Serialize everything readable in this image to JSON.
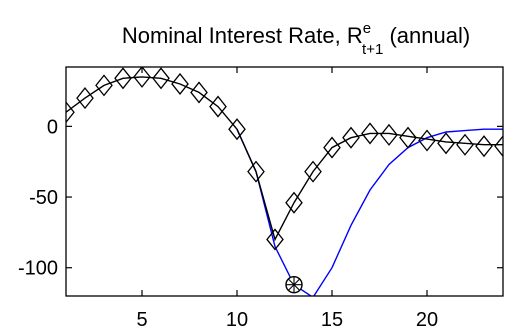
{
  "chart_data": {
    "type": "line",
    "title": {
      "prefix": "Nominal Interest Rate,  R",
      "superscript": "e",
      "subscript": "t+1",
      "suffix": " (annual)"
    },
    "xlim": [
      1,
      24
    ],
    "ylim": [
      -120,
      42
    ],
    "xticks": [
      5,
      10,
      15,
      20
    ],
    "xtick_labels": [
      "5",
      "10",
      "15",
      "20"
    ],
    "yticks": [
      0,
      -50,
      -100
    ],
    "ytick_labels": [
      "0",
      "-50",
      "-100"
    ],
    "grid": false,
    "legend": "none",
    "series": [
      {
        "style": "black-diamonds",
        "color": "#000000",
        "marker": "diamond",
        "x": [
          1,
          2,
          3,
          4,
          5,
          6,
          7,
          8,
          9,
          10,
          11,
          12,
          13,
          14,
          15,
          16,
          17,
          18,
          19,
          20,
          21,
          22,
          23,
          24
        ],
        "y": [
          10,
          20,
          29,
          34,
          35,
          34,
          30,
          24,
          14,
          -2,
          -32,
          -80,
          -54,
          -32,
          -15,
          -8,
          -5,
          -6,
          -8,
          -10,
          -12,
          -13,
          -14,
          -14
        ]
      },
      {
        "style": "black-line",
        "color": "#000000",
        "marker": "none",
        "x": [
          1,
          2,
          3,
          4,
          5,
          6,
          7,
          8,
          9,
          10,
          11,
          12,
          13,
          14,
          15,
          16,
          17,
          18,
          19,
          20,
          21,
          22,
          23,
          24
        ],
        "y": [
          10,
          20,
          29,
          34,
          35,
          34,
          30,
          24,
          14,
          -2,
          -32,
          -80,
          -54,
          -32,
          -15,
          -8,
          -5,
          -5,
          -7,
          -9,
          -11,
          -12,
          -13,
          -13
        ]
      },
      {
        "style": "blue-line",
        "color": "#0000ff",
        "marker": "none",
        "x": [
          10,
          11,
          12,
          13,
          14,
          15,
          16,
          17,
          18,
          19,
          20,
          21,
          22,
          23,
          24
        ],
        "y": [
          -2,
          -32,
          -85,
          -112,
          -121,
          -100,
          -70,
          -45,
          -27,
          -15,
          -8,
          -4,
          -3,
          -2,
          -2
        ]
      }
    ],
    "special_point": {
      "x": 13,
      "y": -112,
      "marker": "circle-asterisk"
    }
  }
}
